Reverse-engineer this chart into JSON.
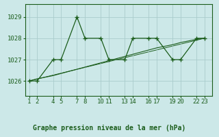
{
  "title": "Graphe pression niveau de la mer (hPa)",
  "bg_color": "#cce8e8",
  "grid_color": "#aacccc",
  "line_color": "#1a5c1a",
  "dot_color": "#1a5c1a",
  "xlim": [
    0.5,
    24.0
  ],
  "ylim": [
    1025.3,
    1029.6
  ],
  "yticks": [
    1026,
    1027,
    1028,
    1029
  ],
  "xtick_positions": [
    1,
    2,
    4,
    5,
    7,
    8,
    10,
    11,
    13,
    14,
    16,
    17,
    19,
    20,
    22,
    23
  ],
  "xtick_labels": [
    "1",
    "2",
    "4",
    "5",
    "7",
    "8",
    "10",
    "11",
    "13",
    "14",
    "16",
    "17",
    "19",
    "20",
    "22",
    "23"
  ],
  "series1_x": [
    1,
    2,
    4,
    5,
    7,
    8,
    10,
    11,
    13,
    14,
    16,
    17,
    19,
    20,
    22,
    23
  ],
  "series1_y": [
    1026.0,
    1026.0,
    1027.0,
    1027.0,
    1029.0,
    1028.0,
    1028.0,
    1027.0,
    1027.0,
    1028.0,
    1028.0,
    1028.0,
    1027.0,
    1027.0,
    1028.0,
    1028.0
  ],
  "series2_x": [
    1,
    2,
    4,
    5,
    7,
    8,
    10,
    11,
    13,
    14,
    16,
    17,
    19,
    20,
    22,
    23
  ],
  "series2_y": [
    1026.0,
    1026.1,
    1026.25,
    1026.35,
    1026.55,
    1026.65,
    1026.85,
    1026.95,
    1027.15,
    1027.25,
    1027.45,
    1027.55,
    1027.7,
    1027.8,
    1027.95,
    1028.0
  ],
  "series3_x": [
    1,
    23
  ],
  "series3_y": [
    1026.0,
    1028.0
  ]
}
